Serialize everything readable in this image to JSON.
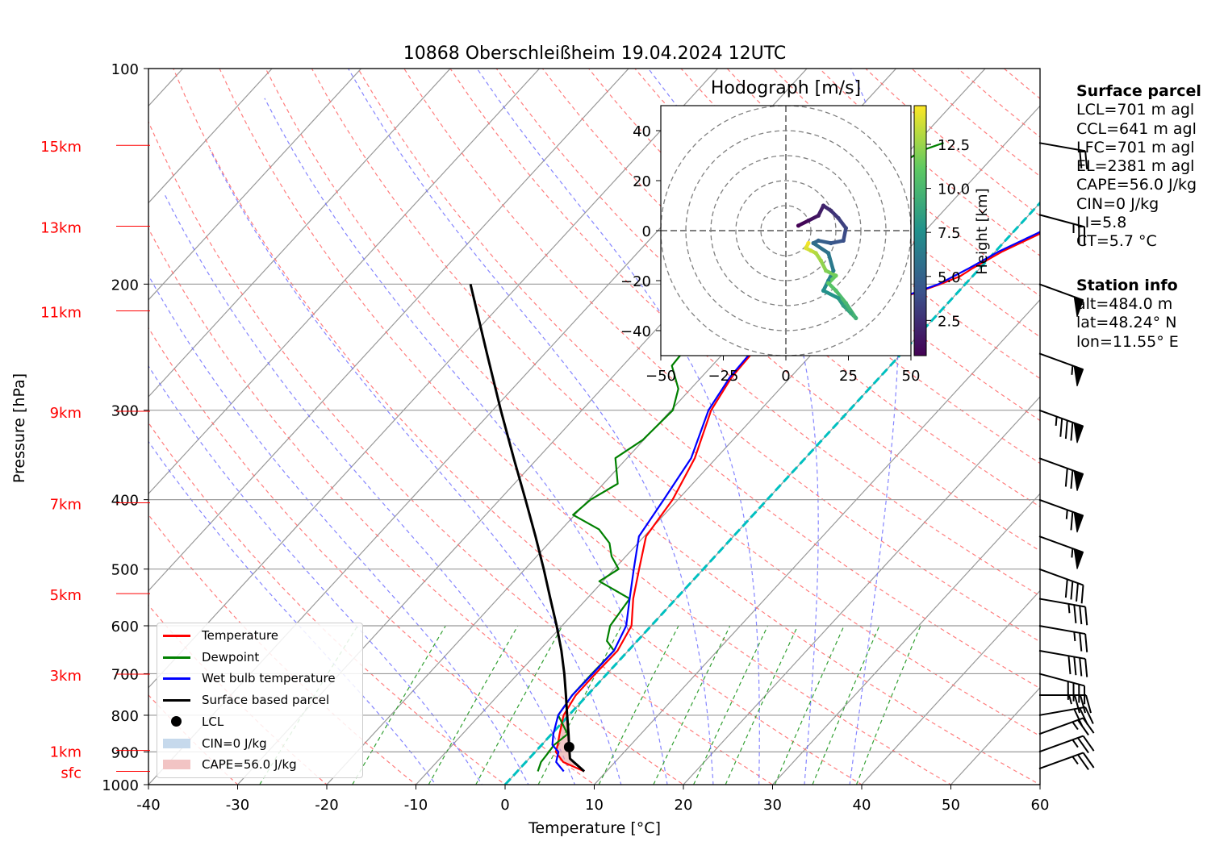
{
  "chart_data": [
    {
      "type": "line",
      "subtype": "skew-T log-P diagram",
      "title": "10868 Oberschleißheim 19.04.2024 12UTC",
      "xlabel": "Temperature [°C]",
      "ylabel": "Pressure [hPa]",
      "xlim": [
        -40,
        60
      ],
      "ylim": [
        1000,
        100
      ],
      "y_scale": "log",
      "x_ticks": [
        -40,
        -30,
        -20,
        -10,
        0,
        10,
        20,
        30,
        40,
        50,
        60
      ],
      "y_ticks": [
        100,
        200,
        300,
        400,
        500,
        600,
        700,
        800,
        900,
        1000
      ],
      "height_labels": [
        {
          "label": "15km",
          "pressure": 128
        },
        {
          "label": "13km",
          "pressure": 166
        },
        {
          "label": "11km",
          "pressure": 218
        },
        {
          "label": "9km",
          "pressure": 301
        },
        {
          "label": "7km",
          "pressure": 404
        },
        {
          "label": "5km",
          "pressure": 541
        },
        {
          "label": "3km",
          "pressure": 701
        },
        {
          "label": "1km",
          "pressure": 896
        },
        {
          "label": "sfc",
          "pressure": 958
        }
      ],
      "grid": true,
      "legend_position": "lower-left",
      "series": [
        {
          "name": "Temperature",
          "color": "#ff0000",
          "points": [
            [
              958,
              7.5
            ],
            [
              930,
              4.2
            ],
            [
              900,
              2.3
            ],
            [
              880,
              1.8
            ],
            [
              850,
              0.9
            ],
            [
              800,
              -0.6
            ],
            [
              750,
              -1.3
            ],
            [
              700,
              -1.3
            ],
            [
              650,
              -1.2
            ],
            [
              600,
              -2.2
            ],
            [
              550,
              -4.8
            ],
            [
              500,
              -7.2
            ],
            [
              450,
              -9.8
            ],
            [
              400,
              -10.6
            ],
            [
              350,
              -12.4
            ],
            [
              300,
              -15.5
            ],
            [
              270,
              -16.6
            ],
            [
              250,
              -16.8
            ],
            [
              240,
              -16.6
            ],
            [
              230,
              -13.8
            ],
            [
              225,
              -10.3
            ],
            [
              220,
              -8.2
            ],
            [
              210,
              -6.0
            ],
            [
              200,
              -2.8
            ],
            [
              195,
              -1.4
            ],
            [
              190,
              -0.8
            ],
            [
              180,
              0.8
            ],
            [
              170,
              3.2
            ],
            [
              160,
              5.5
            ],
            [
              150,
              7.3
            ],
            [
              140,
              8.3
            ],
            [
              130,
              9.7
            ],
            [
              127,
              10.5
            ]
          ]
        },
        {
          "name": "Dewpoint",
          "color": "#008000",
          "points": [
            [
              958,
              2.3
            ],
            [
              930,
              1.7
            ],
            [
              910,
              1.6
            ],
            [
              880,
              1.4
            ],
            [
              850,
              1.8
            ],
            [
              800,
              -1.2
            ],
            [
              750,
              -1.7
            ],
            [
              700,
              -1.7
            ],
            [
              650,
              -1.6
            ],
            [
              630,
              -3.4
            ],
            [
              600,
              -4.6
            ],
            [
              550,
              -5.2
            ],
            [
              520,
              -10.4
            ],
            [
              500,
              -9.5
            ],
            [
              480,
              -11.6
            ],
            [
              460,
              -13.2
            ],
            [
              440,
              -15.8
            ],
            [
              420,
              -20.2
            ],
            [
              400,
              -19.8
            ],
            [
              380,
              -18.4
            ],
            [
              350,
              -21.3
            ],
            [
              330,
              -20.1
            ],
            [
              300,
              -19.8
            ],
            [
              280,
              -21.4
            ],
            [
              260,
              -24.5
            ],
            [
              240,
              -24.8
            ],
            [
              220,
              -28.2
            ],
            [
              210,
              -29.7
            ],
            [
              200,
              -28.0
            ],
            [
              190,
              -27.8
            ],
            [
              180,
              -25.5
            ],
            [
              170,
              -23.8
            ],
            [
              160,
              -23.3
            ],
            [
              150,
              -20.7
            ],
            [
              140,
              -20.4
            ],
            [
              130,
              -18.6
            ],
            [
              127,
              -17.0
            ]
          ]
        },
        {
          "name": "Wet bulb temperature",
          "color": "#0000ff",
          "points": [
            [
              958,
              5.2
            ],
            [
              930,
              3.4
            ],
            [
              900,
              2.6
            ],
            [
              880,
              1.2
            ],
            [
              850,
              0.2
            ],
            [
              800,
              -1.2
            ],
            [
              750,
              -1.7
            ],
            [
              700,
              -1.6
            ],
            [
              650,
              -1.6
            ],
            [
              600,
              -2.8
            ],
            [
              550,
              -5.2
            ],
            [
              500,
              -7.8
            ],
            [
              450,
              -10.6
            ],
            [
              400,
              -11.6
            ],
            [
              350,
              -12.8
            ],
            [
              300,
              -15.8
            ],
            [
              270,
              -16.8
            ],
            [
              250,
              -17.0
            ],
            [
              240,
              -16.8
            ],
            [
              230,
              -14.1
            ],
            [
              225,
              -10.6
            ],
            [
              220,
              -8.4
            ],
            [
              210,
              -6.2
            ],
            [
              200,
              -3.0
            ],
            [
              190,
              -1.2
            ],
            [
              180,
              0.4
            ],
            [
              170,
              2.8
            ],
            [
              160,
              5.0
            ],
            [
              150,
              6.8
            ],
            [
              140,
              7.9
            ],
            [
              130,
              9.4
            ],
            [
              127,
              10.2
            ]
          ]
        },
        {
          "name": "Surface based parcel",
          "color": "#000000",
          "points": [
            [
              958,
              7.5
            ],
            [
              920,
              4.6
            ],
            [
              886,
              3.3
            ],
            [
              850,
              1.9
            ],
            [
              800,
              -0.2
            ],
            [
              750,
              -2.4
            ],
            [
              700,
              -4.8
            ],
            [
              650,
              -7.5
            ],
            [
              600,
              -10.6
            ],
            [
              550,
              -14.1
            ],
            [
              500,
              -17.9
            ],
            [
              450,
              -22.2
            ],
            [
              400,
              -27.1
            ],
            [
              350,
              -32.7
            ],
            [
              300,
              -39.1
            ],
            [
              250,
              -46.5
            ],
            [
              200,
              -55.5
            ]
          ]
        }
      ],
      "lcl": {
        "name": "LCL",
        "pressure": 886,
        "temperature": 3.3
      },
      "cin": {
        "label": "CIN=0 J/kg",
        "color": "#a6c4e0"
      },
      "cape": {
        "label": "CAPE=56.0 J/kg",
        "color": "#e8a0a0"
      },
      "reference_lines": {
        "isotherm_color": "#999999",
        "dry_adiabat_color": "#ff6666",
        "moist_adiabat_color": "#6666ff",
        "mixing_ratio_color": "#33a033",
        "freezing_level_line_color": "#00c0c0"
      },
      "wind_barbs": [
        {
          "pressure": 127,
          "speed_kt": 20,
          "direction": 280
        },
        {
          "pressure": 160,
          "speed_kt": 25,
          "direction": 285
        },
        {
          "pressure": 200,
          "speed_kt": 50,
          "direction": 290
        },
        {
          "pressure": 250,
          "speed_kt": 55,
          "direction": 290
        },
        {
          "pressure": 300,
          "speed_kt": 85,
          "direction": 290
        },
        {
          "pressure": 350,
          "speed_kt": 70,
          "direction": 290
        },
        {
          "pressure": 400,
          "speed_kt": 65,
          "direction": 290
        },
        {
          "pressure": 450,
          "speed_kt": 55,
          "direction": 290
        },
        {
          "pressure": 500,
          "speed_kt": 40,
          "direction": 290
        },
        {
          "pressure": 550,
          "speed_kt": 35,
          "direction": 280
        },
        {
          "pressure": 600,
          "speed_kt": 25,
          "direction": 280
        },
        {
          "pressure": 650,
          "speed_kt": 40,
          "direction": 280
        },
        {
          "pressure": 700,
          "speed_kt": 40,
          "direction": 285
        },
        {
          "pressure": 750,
          "speed_kt": 35,
          "direction": 270
        },
        {
          "pressure": 800,
          "speed_kt": 30,
          "direction": 260
        },
        {
          "pressure": 850,
          "speed_kt": 25,
          "direction": 250
        },
        {
          "pressure": 900,
          "speed_kt": 25,
          "direction": 250
        },
        {
          "pressure": 950,
          "speed_kt": 25,
          "direction": 250
        }
      ]
    },
    {
      "type": "scatter",
      "subtype": "hodograph",
      "title": "Hodograph [m/s]",
      "xlim": [
        -50,
        50
      ],
      "ylim": [
        -50,
        50
      ],
      "x_ticks": [
        -50,
        -25,
        0,
        25,
        50
      ],
      "y_ticks": [
        40,
        20,
        0,
        -20,
        -40
      ],
      "rings": [
        10,
        20,
        30,
        40,
        50
      ],
      "colorbar": {
        "label": "Height [km]",
        "ticks": [
          2.5,
          5.0,
          7.5,
          10.0,
          12.5
        ],
        "range": [
          0.5,
          14.7
        ]
      },
      "points": [
        {
          "u": 5,
          "v": 2,
          "h": 0.5
        },
        {
          "u": 9,
          "v": 4,
          "h": 1.0
        },
        {
          "u": 13,
          "v": 6,
          "h": 1.5
        },
        {
          "u": 15,
          "v": 10,
          "h": 2.0
        },
        {
          "u": 18,
          "v": 8,
          "h": 2.5
        },
        {
          "u": 21,
          "v": 5,
          "h": 3.0
        },
        {
          "u": 24,
          "v": 1,
          "h": 3.5
        },
        {
          "u": 23,
          "v": -4,
          "h": 4.0
        },
        {
          "u": 18,
          "v": -5,
          "h": 4.5
        },
        {
          "u": 13,
          "v": -4,
          "h": 5.0
        },
        {
          "u": 11,
          "v": -5,
          "h": 5.5
        },
        {
          "u": 17,
          "v": -9,
          "h": 6.0
        },
        {
          "u": 19,
          "v": -16,
          "h": 6.5
        },
        {
          "u": 17,
          "v": -20,
          "h": 7.0
        },
        {
          "u": 15,
          "v": -24,
          "h": 7.5
        },
        {
          "u": 21,
          "v": -27,
          "h": 8.0
        },
        {
          "u": 23,
          "v": -30,
          "h": 8.5
        },
        {
          "u": 26,
          "v": -33,
          "h": 9.0
        },
        {
          "u": 28,
          "v": -35,
          "h": 9.5
        },
        {
          "u": 24,
          "v": -29,
          "h": 10.0
        },
        {
          "u": 20,
          "v": -24,
          "h": 10.5
        },
        {
          "u": 17,
          "v": -21,
          "h": 11.0
        },
        {
          "u": 20,
          "v": -18,
          "h": 11.5
        },
        {
          "u": 16,
          "v": -16,
          "h": 12.0
        },
        {
          "u": 14,
          "v": -12,
          "h": 12.5
        },
        {
          "u": 12,
          "v": -9,
          "h": 13.0
        },
        {
          "u": 10,
          "v": -8,
          "h": 13.5
        },
        {
          "u": 8,
          "v": -7,
          "h": 14.0
        },
        {
          "u": 9,
          "v": -5,
          "h": 14.5
        }
      ]
    }
  ],
  "legend": {
    "items": [
      {
        "label": "Temperature",
        "kind": "line",
        "color": "#ff0000"
      },
      {
        "label": "Dewpoint",
        "kind": "line",
        "color": "#008000"
      },
      {
        "label": "Wet bulb temperature",
        "kind": "line",
        "color": "#0000ff"
      },
      {
        "label": "Surface based parcel",
        "kind": "line",
        "color": "#000000"
      },
      {
        "label": "LCL",
        "kind": "dot",
        "color": "#000000"
      },
      {
        "label": "CIN=0 J/kg",
        "kind": "patch",
        "color": "#c6d9ec"
      },
      {
        "label": "CAPE=56.0 J/kg",
        "kind": "patch",
        "color": "#f2c4c4"
      }
    ]
  },
  "info": {
    "parcel_title": "Surface parcel",
    "parcel_lines": [
      "LCL=701 m agl",
      "CCL=641 m agl",
      "LFC=701 m agl",
      "EL=2381 m agl",
      "CAPE=56.0 J/kg",
      "CIN=0 J/kg",
      "LI=5.8",
      "CT=5.7 °C"
    ],
    "station_title": "Station info",
    "station_lines": [
      "alt=484.0 m",
      "lat=48.24° N",
      "lon=11.55° E"
    ]
  }
}
